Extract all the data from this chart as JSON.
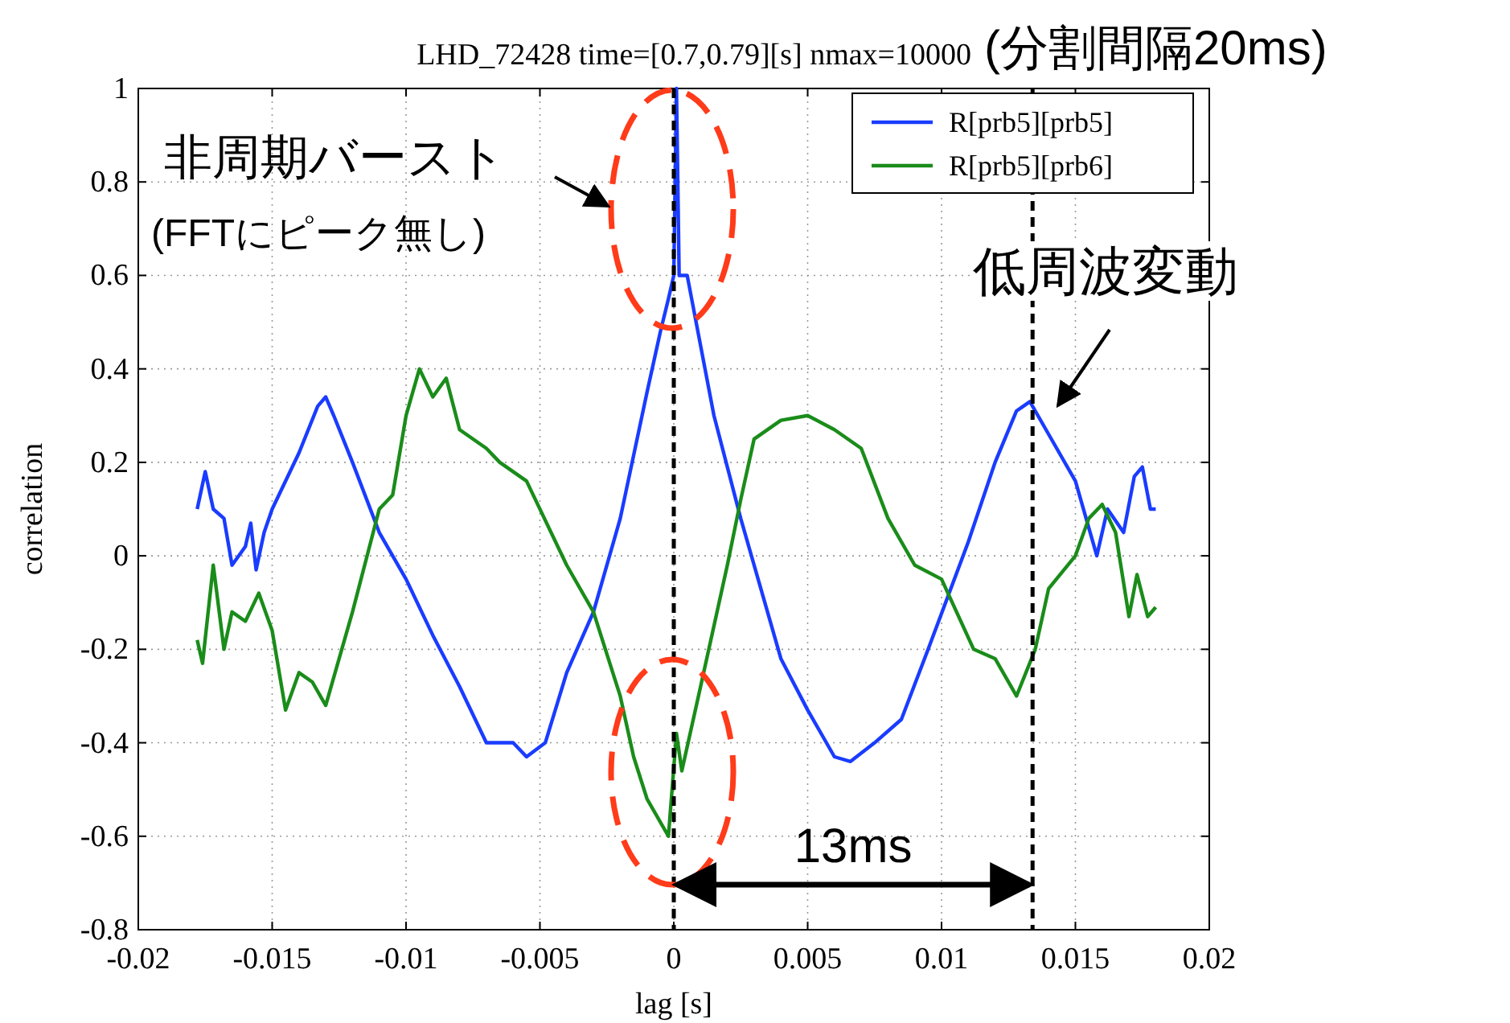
{
  "chart_data": {
    "type": "line",
    "title": "LHD_72428 time=[0.7,0.79][s] nmax=10000",
    "subtitle": "(分割間隔20ms)",
    "xlabel": "lag [s]",
    "ylabel": "correlation",
    "xlim": [
      -0.02,
      0.02
    ],
    "xticks": [
      -0.02,
      -0.015,
      -0.01,
      -0.005,
      0,
      0.005,
      0.01,
      0.015,
      0.02
    ],
    "ylim": [
      -0.8,
      1
    ],
    "yticks": [
      -0.8,
      -0.6,
      -0.4,
      -0.2,
      0,
      0.2,
      0.4,
      0.6,
      0.8,
      1
    ],
    "grid": true,
    "legend": "top right",
    "line_style": "solid",
    "series": [
      {
        "name": "R[prb5][prb5]",
        "color": "#1a3cff",
        "x": [
          -0.0178,
          -0.0175,
          -0.0172,
          -0.0168,
          -0.0165,
          -0.016,
          -0.0158,
          -0.0156,
          -0.0153,
          -0.015,
          -0.014,
          -0.0133,
          -0.013,
          -0.0127,
          -0.012,
          -0.011,
          -0.01,
          -0.009,
          -0.008,
          -0.007,
          -0.006,
          -0.0055,
          -0.0048,
          -0.004,
          -0.003,
          -0.002,
          -0.001,
          -0.0005,
          -0.0002,
          0,
          0.0001,
          0.0002,
          0.0005,
          0.001,
          0.0015,
          0.0025,
          0.004,
          0.005,
          0.006,
          0.0066,
          0.0075,
          0.0085,
          0.0095,
          0.011,
          0.012,
          0.0128,
          0.0133,
          0.014,
          0.015,
          0.0158,
          0.0162,
          0.0168,
          0.0172,
          0.0175,
          0.0178,
          0.018
        ],
        "values": [
          0.1,
          0.18,
          0.1,
          0.08,
          -0.02,
          0.02,
          0.07,
          -0.03,
          0.05,
          0.1,
          0.22,
          0.32,
          0.34,
          0.3,
          0.2,
          0.05,
          -0.05,
          -0.17,
          -0.28,
          -0.4,
          -0.4,
          -0.43,
          -0.4,
          -0.25,
          -0.12,
          0.08,
          0.35,
          0.48,
          0.55,
          0.6,
          1.0,
          0.6,
          0.6,
          0.45,
          0.3,
          0.08,
          -0.22,
          -0.33,
          -0.43,
          -0.44,
          -0.4,
          -0.35,
          -0.2,
          0.03,
          0.2,
          0.31,
          0.33,
          0.26,
          0.16,
          0.0,
          0.1,
          0.05,
          0.17,
          0.19,
          0.1,
          0.1
        ]
      },
      {
        "name": "R[prb5][prb6]",
        "color": "#1a8c1a",
        "x": [
          -0.0178,
          -0.0176,
          -0.0172,
          -0.0168,
          -0.0165,
          -0.016,
          -0.0155,
          -0.015,
          -0.0145,
          -0.014,
          -0.0135,
          -0.013,
          -0.012,
          -0.011,
          -0.0105,
          -0.01,
          -0.0095,
          -0.009,
          -0.0085,
          -0.008,
          -0.007,
          -0.0065,
          -0.0055,
          -0.004,
          -0.003,
          -0.002,
          -0.0015,
          -0.001,
          -0.0005,
          -0.0002,
          0.0001,
          0.0003,
          0.001,
          0.002,
          0.0025,
          0.003,
          0.004,
          0.005,
          0.006,
          0.007,
          0.008,
          0.009,
          0.01,
          0.0112,
          0.012,
          0.0128,
          0.0135,
          0.014,
          0.015,
          0.0155,
          0.016,
          0.0165,
          0.017,
          0.0173,
          0.0177,
          0.018
        ],
        "values": [
          -0.18,
          -0.23,
          -0.02,
          -0.2,
          -0.12,
          -0.14,
          -0.08,
          -0.16,
          -0.33,
          -0.25,
          -0.27,
          -0.32,
          -0.12,
          0.1,
          0.13,
          0.3,
          0.4,
          0.34,
          0.38,
          0.27,
          0.23,
          0.2,
          0.16,
          -0.02,
          -0.12,
          -0.3,
          -0.43,
          -0.52,
          -0.57,
          -0.6,
          -0.38,
          -0.46,
          -0.28,
          -0.02,
          0.12,
          0.25,
          0.29,
          0.3,
          0.27,
          0.23,
          0.08,
          -0.02,
          -0.05,
          -0.2,
          -0.22,
          -0.3,
          -0.2,
          -0.07,
          0.0,
          0.08,
          0.11,
          0.05,
          -0.13,
          -0.04,
          -0.13,
          -0.11
        ]
      }
    ],
    "ref_lines": [
      {
        "axis": "x",
        "value": 0,
        "line_style": "dashed",
        "color": "#000000"
      },
      {
        "axis": "x",
        "value": 0.0134,
        "line_style": "dashed",
        "color": "#000000"
      }
    ],
    "annotations": [
      "非周期バースト",
      "(FFTにピーク無し)",
      "低周波変動",
      "13ms"
    ]
  }
}
